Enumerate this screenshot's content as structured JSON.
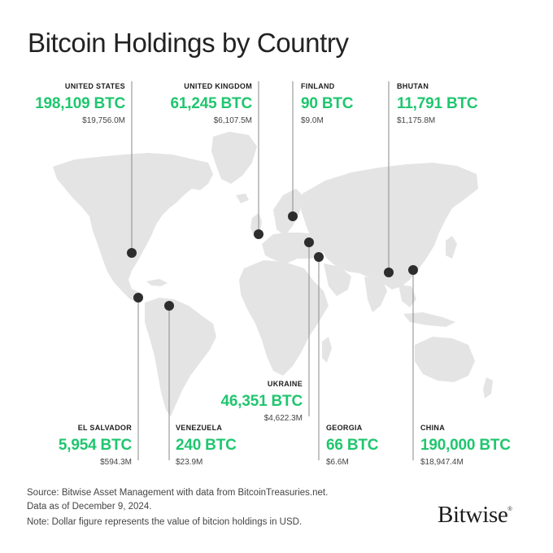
{
  "title": "Bitcoin Holdings by Country",
  "holdings": [
    {
      "id": "united-states",
      "country": "UNITED STATES",
      "btc": "198,109 BTC",
      "usd": "$19,756.0M"
    },
    {
      "id": "united-kingdom",
      "country": "UNITED KINGDOM",
      "btc": "61,245 BTC",
      "usd": "$6,107.5M"
    },
    {
      "id": "finland",
      "country": "FINLAND",
      "btc": "90 BTC",
      "usd": "$9.0M"
    },
    {
      "id": "bhutan",
      "country": "BHUTAN",
      "btc": "11,791 BTC",
      "usd": "$1,175.8M"
    },
    {
      "id": "ukraine",
      "country": "UKRAINE",
      "btc": "46,351 BTC",
      "usd": "$4,622.3M"
    },
    {
      "id": "el-salvador",
      "country": "EL SALVADOR",
      "btc": "5,954 BTC",
      "usd": "$594.3M"
    },
    {
      "id": "venezuela",
      "country": "VENEZUELA",
      "btc": "240 BTC",
      "usd": "$23.9M"
    },
    {
      "id": "georgia",
      "country": "GEORGIA",
      "btc": "66 BTC",
      "usd": "$6.6M"
    },
    {
      "id": "china",
      "country": "CHINA",
      "btc": "190,000 BTC",
      "usd": "$18,947.4M"
    }
  ],
  "footnotes": {
    "source": "Source: Bitwise Asset Management with data from BitcoinTreasuries.net.",
    "date": "Data as of December 9, 2024.",
    "note": "Note: Dollar figure represents the value of bitcion holdings in USD."
  },
  "logo": {
    "text": "Bitwise",
    "mark": "®"
  },
  "colors": {
    "accent": "#1fc66f",
    "land": "#e4e4e4",
    "pin": "#2d2d2d",
    "leader": "#8a8a8a"
  }
}
